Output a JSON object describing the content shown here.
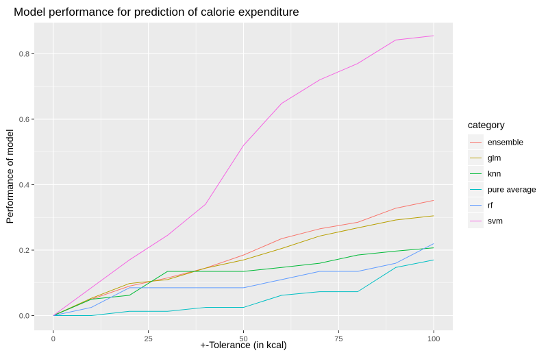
{
  "chart_data": {
    "type": "line",
    "title": "Model performance for prediction of calorie expenditure",
    "xlabel": "+-Tolerance (in kcal)",
    "ylabel": "Performance of model",
    "xlim": [
      -5,
      105
    ],
    "ylim": [
      -0.045,
      0.895
    ],
    "x_ticks": [
      0,
      25,
      50,
      75,
      100
    ],
    "x_tick_labels": [
      "0",
      "25",
      "50",
      "75",
      "100"
    ],
    "y_ticks": [
      0.0,
      0.2,
      0.4,
      0.6,
      0.8
    ],
    "y_tick_labels": [
      "0.0",
      "0.2",
      "0.4",
      "0.6",
      "0.8"
    ],
    "grid": true,
    "legend": {
      "title": "category",
      "position": "right"
    },
    "x": [
      0,
      10,
      20,
      30,
      40,
      50,
      60,
      70,
      80,
      90,
      100
    ],
    "series": [
      {
        "name": "ensemble",
        "color": "#F8766D",
        "values": [
          0.0,
          0.05,
          0.09,
          0.115,
          0.145,
          0.185,
          0.235,
          0.265,
          0.285,
          0.328,
          0.352
        ]
      },
      {
        "name": "glm",
        "color": "#B79F00",
        "values": [
          0.0,
          0.053,
          0.098,
          0.11,
          0.145,
          0.17,
          0.205,
          0.243,
          0.268,
          0.292,
          0.305
        ]
      },
      {
        "name": "knn",
        "color": "#00BA38",
        "values": [
          0.0,
          0.05,
          0.062,
          0.135,
          0.135,
          0.135,
          0.147,
          0.16,
          0.185,
          0.197,
          0.207
        ]
      },
      {
        "name": "pure average",
        "color": "#00BFC4",
        "values": [
          0.0,
          0.0,
          0.013,
          0.013,
          0.025,
          0.025,
          0.062,
          0.073,
          0.073,
          0.147,
          0.17
        ]
      },
      {
        "name": "rf",
        "color": "#619CFF",
        "values": [
          0.0,
          0.025,
          0.085,
          0.085,
          0.085,
          0.085,
          0.11,
          0.135,
          0.135,
          0.16,
          0.22
        ]
      },
      {
        "name": "svm",
        "color": "#F564E3",
        "values": [
          0.0,
          0.085,
          0.17,
          0.245,
          0.34,
          0.52,
          0.648,
          0.72,
          0.77,
          0.842,
          0.855
        ]
      }
    ]
  }
}
